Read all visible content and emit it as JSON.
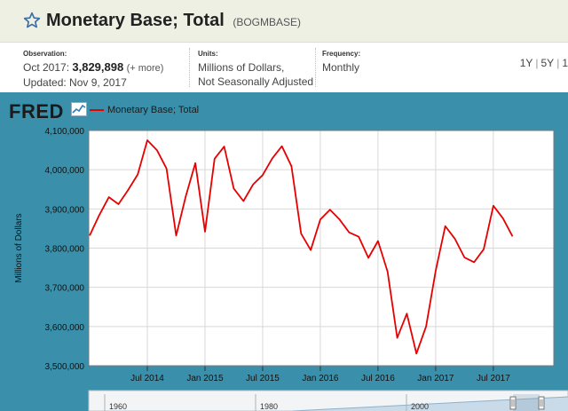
{
  "header": {
    "title": "Monetary Base; Total",
    "series_id": "(BOGMBASE)",
    "star_icon": "star-outline-icon"
  },
  "meta": {
    "observation": {
      "label": "Observation:",
      "period": "Oct 2017:",
      "value": "3,829,898",
      "more": "(+ more)",
      "updated": "Updated: Nov 9, 2017"
    },
    "units": {
      "label": "Units:",
      "line1": "Millions of Dollars,",
      "line2": "Not Seasonally Adjusted"
    },
    "frequency": {
      "label": "Frequency:",
      "value": "Monthly"
    }
  },
  "range_buttons": [
    "1Y",
    "5Y",
    "1"
  ],
  "logo": {
    "text": "FRED",
    "graph_icon": "line-graph-icon"
  },
  "colors": {
    "series": "#e60000",
    "panel": "#3a90ab",
    "header": "#eef0e4"
  },
  "chart_data": {
    "type": "line",
    "title": "",
    "ylabel": "Millions of Dollars",
    "legend": "Monetary Base; Total",
    "legend_position": "top-left",
    "grid": true,
    "ylim": [
      3500000,
      4100000
    ],
    "yticks": [
      "3,500,000",
      "3,600,000",
      "3,700,000",
      "3,800,000",
      "3,900,000",
      "4,000,000",
      "4,100,000"
    ],
    "xticks": [
      "Jul 2014",
      "Jan 2015",
      "Jul 2015",
      "Jan 2016",
      "Jul 2016",
      "Jan 2017",
      "Jul 2017"
    ],
    "x_start": "2014-01",
    "series": [
      {
        "name": "Monetary Base; Total",
        "values": [
          3832000,
          3884000,
          3930000,
          3912000,
          3948000,
          3988000,
          4075000,
          4050000,
          4003000,
          3832000,
          3932000,
          4017000,
          3842000,
          4028000,
          4059000,
          3952000,
          3920000,
          3962000,
          3986000,
          4029000,
          4060000,
          4009000,
          3837000,
          3795000,
          3873000,
          3898000,
          3873000,
          3840000,
          3829000,
          3775000,
          3818000,
          3740000,
          3571000,
          3633000,
          3531000,
          3600000,
          3742000,
          3856000,
          3824000,
          3776000,
          3764000,
          3797000,
          3908000,
          3876000,
          3829898
        ]
      }
    ],
    "navigator": {
      "labels": [
        "1960",
        "1980",
        "2000"
      ]
    }
  }
}
